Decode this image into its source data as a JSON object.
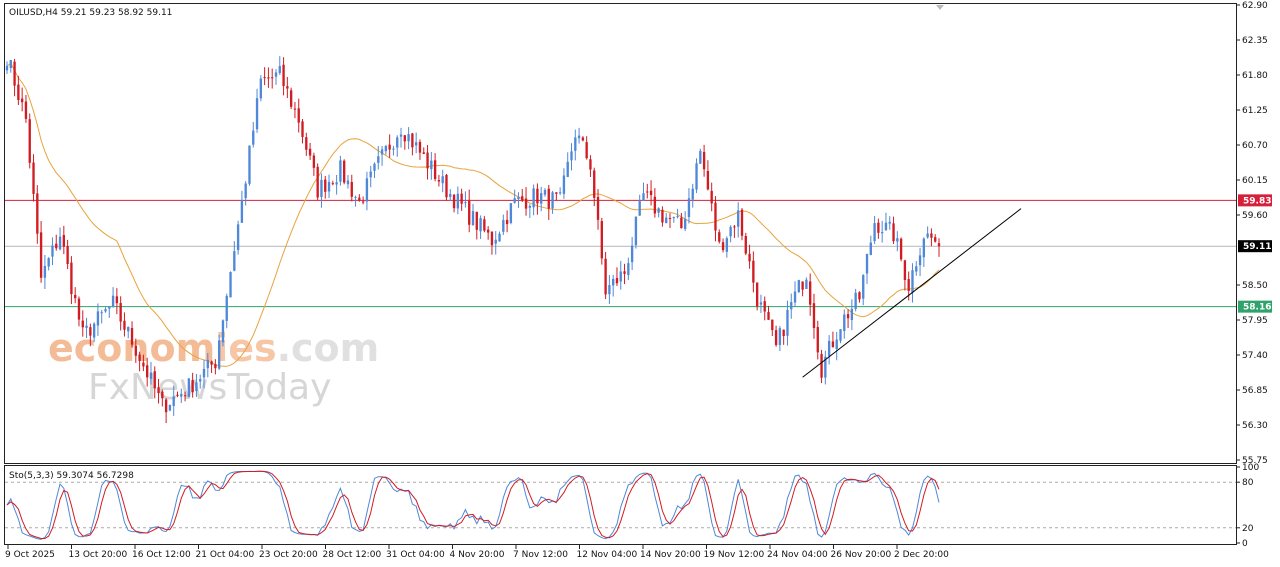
{
  "chart_data": {
    "type": "candlestick",
    "symbol_header": "OILUSD,H4  59.21 59.23 58.92 59.11",
    "price_axis": {
      "range": [
        55.75,
        62.9
      ],
      "ticks": [
        "62.90",
        "62.35",
        "61.80",
        "61.25",
        "60.70",
        "60.15",
        "59.60",
        "58.50",
        "57.95",
        "57.40",
        "56.85",
        "56.30",
        "55.75"
      ]
    },
    "time_axis": {
      "labels": [
        "9 Oct 2025",
        "13 Oct 20:00",
        "16 Oct 12:00",
        "21 Oct 04:00",
        "23 Oct 20:00",
        "28 Oct 12:00",
        "31 Oct 04:00",
        "4 Nov 20:00",
        "7 Nov 12:00",
        "12 Nov 04:00",
        "14 Nov 20:00",
        "19 Nov 12:00",
        "24 Nov 04:00",
        "26 Nov 20:00",
        "2 Dec 20:00"
      ]
    },
    "levels": {
      "resistance": {
        "value": 59.83,
        "label": "59.83",
        "color": "#d6203a"
      },
      "current": {
        "value": 59.11,
        "label": "59.11",
        "color": "#000000"
      },
      "support": {
        "value": 58.16,
        "label": "58.16",
        "color": "#2fa36b"
      }
    },
    "trendline": {
      "from": {
        "date": "24 Nov 04:00",
        "price": 57.05
      },
      "to": {
        "date": "projected",
        "price": 59.7
      }
    },
    "moving_average": {
      "color": "#e8a33d"
    },
    "candle_colors": {
      "up": "#4f88d8",
      "down": "#d01c22"
    },
    "anchors": [
      {
        "i": 0,
        "p": 62.1
      },
      {
        "i": 5,
        "p": 61.1
      },
      {
        "i": 9,
        "p": 58.6
      },
      {
        "i": 14,
        "p": 59.3
      },
      {
        "i": 20,
        "p": 57.7
      },
      {
        "i": 28,
        "p": 58.2
      },
      {
        "i": 34,
        "p": 57.5
      },
      {
        "i": 41,
        "p": 56.6
      },
      {
        "i": 48,
        "p": 56.9
      },
      {
        "i": 55,
        "p": 57.3
      },
      {
        "i": 62,
        "p": 59.8
      },
      {
        "i": 67,
        "p": 61.7
      },
      {
        "i": 72,
        "p": 61.8
      },
      {
        "i": 77,
        "p": 61.1
      },
      {
        "i": 82,
        "p": 60.0
      },
      {
        "i": 88,
        "p": 60.3
      },
      {
        "i": 93,
        "p": 59.8
      },
      {
        "i": 98,
        "p": 60.4
      },
      {
        "i": 104,
        "p": 61.0
      },
      {
        "i": 110,
        "p": 60.5
      },
      {
        "i": 116,
        "p": 60.0
      },
      {
        "i": 122,
        "p": 59.6
      },
      {
        "i": 128,
        "p": 59.2
      },
      {
        "i": 134,
        "p": 59.8
      },
      {
        "i": 140,
        "p": 59.9
      },
      {
        "i": 146,
        "p": 59.8
      },
      {
        "i": 150,
        "p": 60.9
      },
      {
        "i": 154,
        "p": 60.4
      },
      {
        "i": 158,
        "p": 58.4
      },
      {
        "i": 163,
        "p": 58.7
      },
      {
        "i": 168,
        "p": 59.9
      },
      {
        "i": 173,
        "p": 59.6
      },
      {
        "i": 178,
        "p": 59.4
      },
      {
        "i": 183,
        "p": 60.6
      },
      {
        "i": 188,
        "p": 59.1
      },
      {
        "i": 193,
        "p": 59.6
      },
      {
        "i": 198,
        "p": 58.3
      },
      {
        "i": 203,
        "p": 57.5
      },
      {
        "i": 207,
        "p": 58.2
      },
      {
        "i": 211,
        "p": 58.7
      },
      {
        "i": 215,
        "p": 57.2
      },
      {
        "i": 220,
        "p": 57.9
      },
      {
        "i": 225,
        "p": 58.3
      },
      {
        "i": 229,
        "p": 59.5
      },
      {
        "i": 234,
        "p": 59.3
      },
      {
        "i": 238,
        "p": 58.5
      },
      {
        "i": 242,
        "p": 59.3
      },
      {
        "i": 246,
        "p": 59.15
      }
    ],
    "stochastic": {
      "header": "Sto(5,3,3) 59.3074 56.7298",
      "range": [
        0,
        100
      ],
      "ticks": [
        "100",
        "80",
        "20",
        "0"
      ],
      "levels": [
        80,
        20
      ],
      "main_color": "#4f88d8",
      "signal_color": "#d01c22"
    }
  },
  "watermark": {
    "line1a": "econom",
    "line1b": "ies",
    "line1c": ".com",
    "line2": "FxNewsToday"
  }
}
